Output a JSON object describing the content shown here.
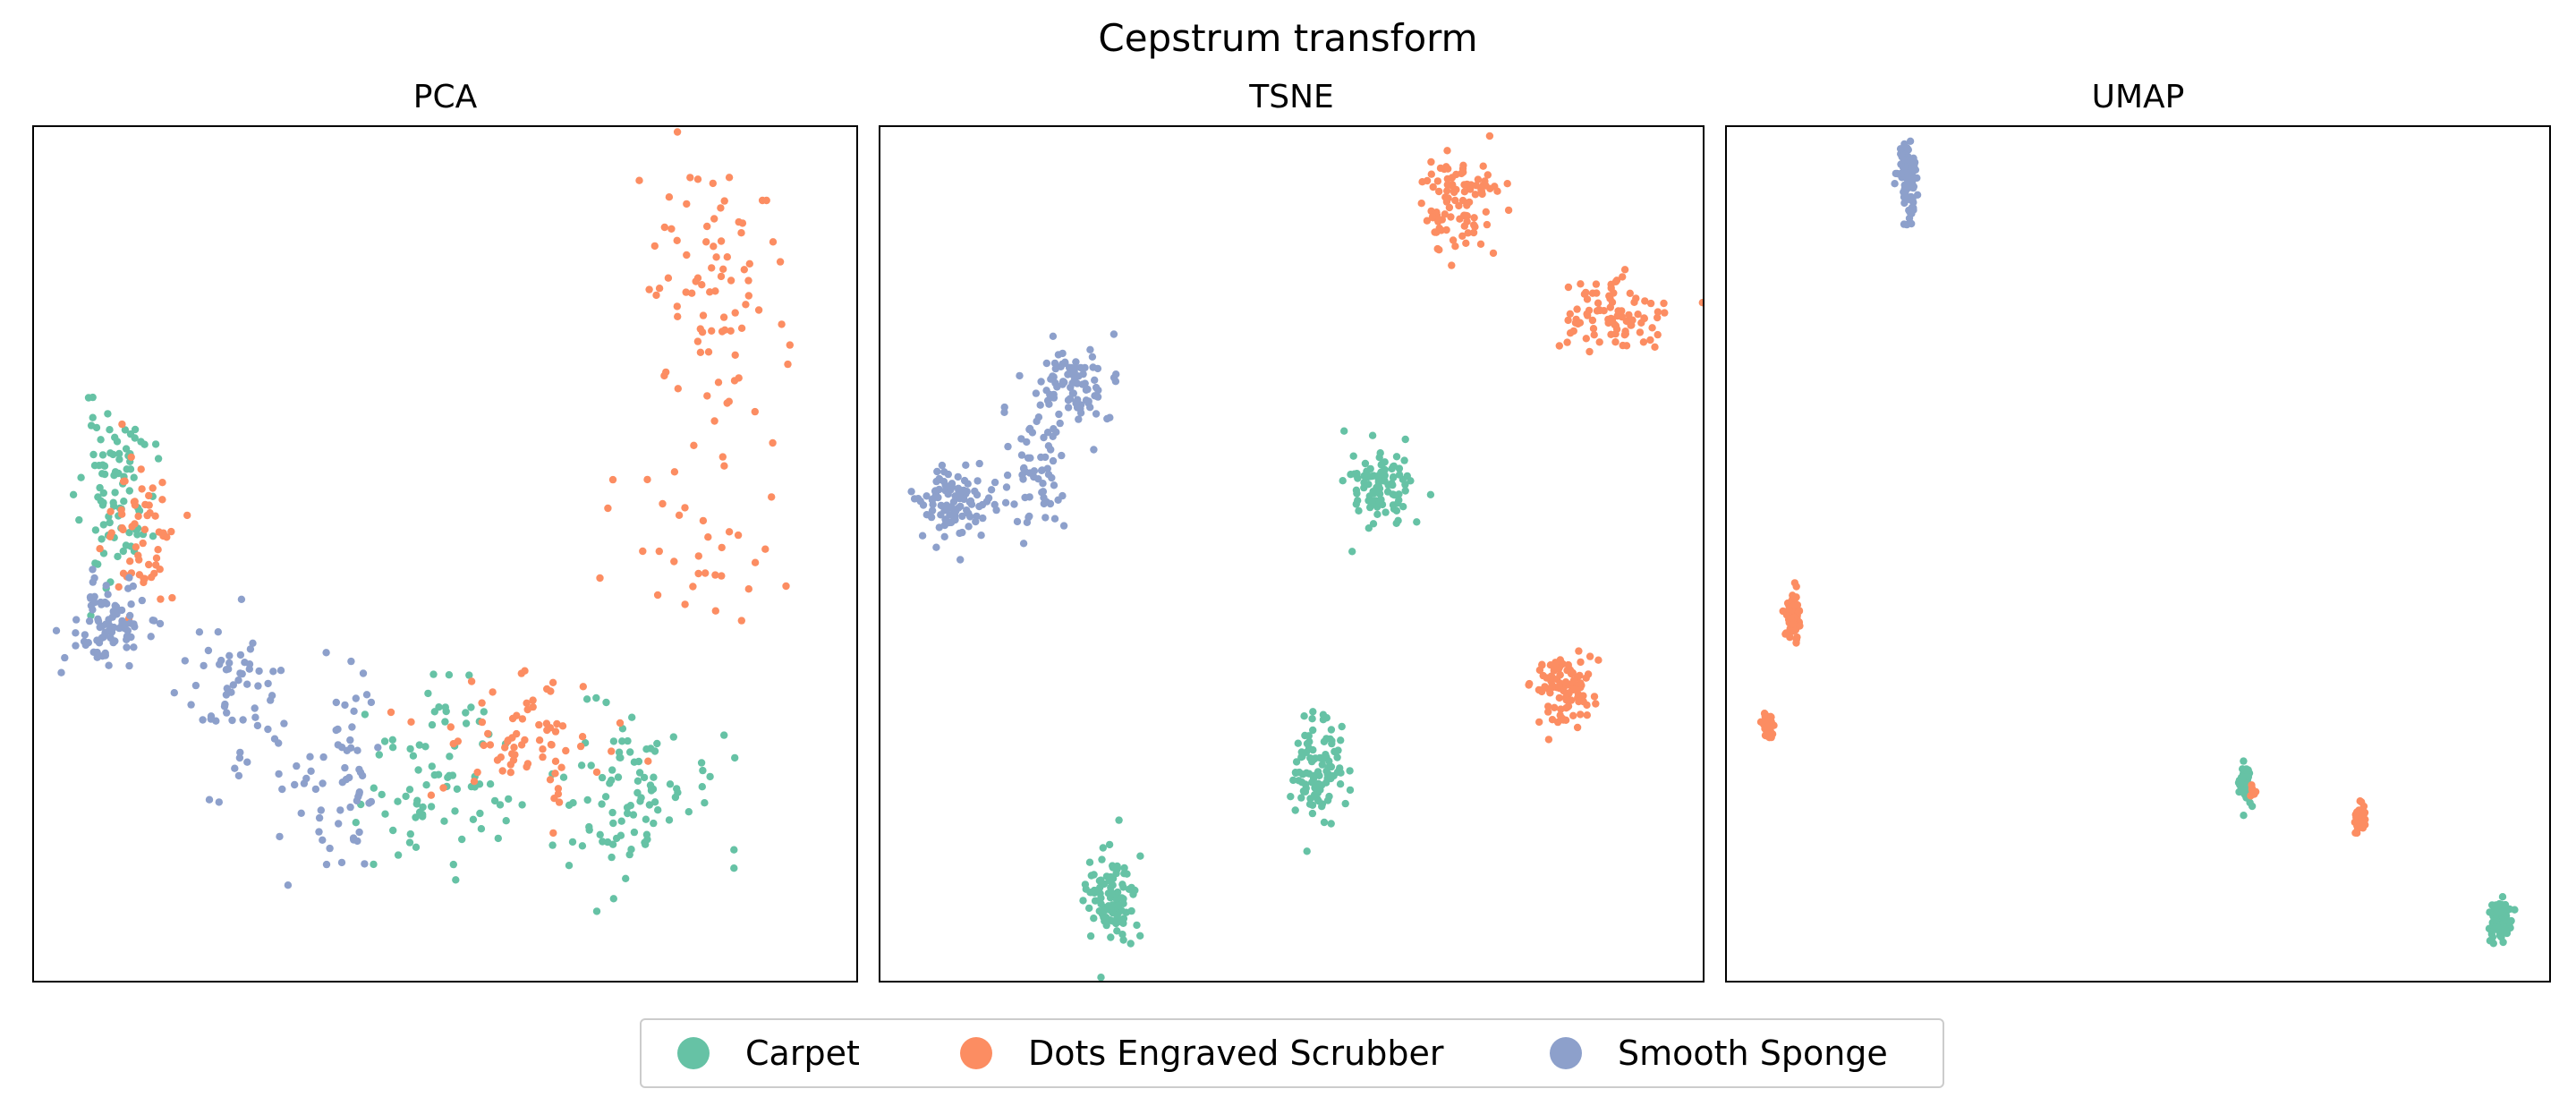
{
  "figure": {
    "title": "Cepstrum transform"
  },
  "colors": {
    "Carpet": "#66c2a5",
    "Dots Engraved Scrubber": "#fc8d62",
    "Smooth Sponge": "#8da0cb"
  },
  "legend": {
    "items": [
      "Carpet",
      "Dots Engraved Scrubber",
      "Smooth Sponge"
    ]
  },
  "chart_data": [
    {
      "type": "scatter",
      "title": "PCA",
      "xlabel": "",
      "ylabel": "",
      "ticks": false,
      "xlim": [
        0,
        100
      ],
      "ylim": [
        0,
        100
      ],
      "clusters": [
        {
          "series": "Carpet",
          "cx": 10,
          "cy": 57,
          "sx": 2.2,
          "sy": 5,
          "n": 90,
          "seed": 11
        },
        {
          "series": "Carpet",
          "cx": 49,
          "cy": 24,
          "sx": 4.5,
          "sy": 5,
          "n": 80,
          "seed": 12
        },
        {
          "series": "Carpet",
          "cx": 71,
          "cy": 22,
          "sx": 5.5,
          "sy": 5,
          "n": 95,
          "seed": 13
        },
        {
          "series": "Dots Engraved Scrubber",
          "cx": 13,
          "cy": 52,
          "sx": 2.2,
          "sy": 5,
          "n": 60,
          "seed": 21
        },
        {
          "series": "Dots Engraved Scrubber",
          "cx": 59,
          "cy": 29,
          "sx": 5,
          "sy": 3.5,
          "n": 75,
          "seed": 22
        },
        {
          "series": "Dots Engraved Scrubber",
          "cx": 82,
          "cy": 80,
          "sx": 4.5,
          "sy": 9.5,
          "n": 85,
          "seed": 23
        },
        {
          "series": "Dots Engraved Scrubber",
          "cx": 81,
          "cy": 50,
          "sx": 6,
          "sy": 5,
          "n": 30,
          "seed": 24
        },
        {
          "series": "Smooth Sponge",
          "cx": 9,
          "cy": 42,
          "sx": 2.2,
          "sy": 2.5,
          "n": 90,
          "seed": 31
        },
        {
          "series": "Smooth Sponge",
          "cx": 25,
          "cy": 34,
          "sx": 3.5,
          "sy": 4.5,
          "n": 60,
          "seed": 32
        },
        {
          "series": "Smooth Sponge",
          "cx": 37,
          "cy": 24,
          "sx": 3.5,
          "sy": 5.5,
          "n": 60,
          "seed": 33
        }
      ]
    },
    {
      "type": "scatter",
      "title": "TSNE",
      "xlabel": "",
      "ylabel": "",
      "ticks": false,
      "xlim": [
        0,
        100
      ],
      "ylim": [
        0,
        100
      ],
      "clusters": [
        {
          "series": "Carpet",
          "cx": 61,
          "cy": 58,
          "sx": 1.8,
          "sy": 2.3,
          "n": 100,
          "seed": 41
        },
        {
          "series": "Carpet",
          "cx": 53,
          "cy": 25,
          "sx": 1.7,
          "sy": 3.0,
          "n": 100,
          "seed": 42
        },
        {
          "series": "Carpet",
          "cx": 28,
          "cy": 9,
          "sx": 1.6,
          "sy": 3.0,
          "n": 100,
          "seed": 43
        },
        {
          "series": "Dots Engraved Scrubber",
          "cx": 70,
          "cy": 91,
          "sx": 2.2,
          "sy": 3.0,
          "n": 100,
          "seed": 51
        },
        {
          "series": "Dots Engraved Scrubber",
          "cx": 90,
          "cy": 78,
          "sx": 3.0,
          "sy": 2.2,
          "n": 90,
          "seed": 52
        },
        {
          "series": "Dots Engraved Scrubber",
          "cx": 83,
          "cy": 34,
          "sx": 1.9,
          "sy": 2.0,
          "n": 100,
          "seed": 53
        },
        {
          "series": "Smooth Sponge",
          "cx": 23,
          "cy": 70,
          "sx": 3.0,
          "sy": 2.5,
          "n": 90,
          "seed": 61
        },
        {
          "series": "Smooth Sponge",
          "cx": 9,
          "cy": 56,
          "sx": 2.5,
          "sy": 2.2,
          "n": 100,
          "seed": 62
        },
        {
          "series": "Smooth Sponge",
          "cx": 19,
          "cy": 59,
          "sx": 1.6,
          "sy": 3.5,
          "n": 60,
          "seed": 63
        }
      ]
    },
    {
      "type": "scatter",
      "title": "UMAP",
      "xlabel": "",
      "ylabel": "",
      "ticks": false,
      "xlim": [
        0,
        100
      ],
      "ylim": [
        0,
        100
      ],
      "clusters": [
        {
          "series": "Carpet",
          "cx": 63,
          "cy": 23,
          "sx": 0.4,
          "sy": 1.2,
          "n": 60,
          "seed": 71
        },
        {
          "series": "Carpet",
          "cx": 94,
          "cy": 7,
          "sx": 0.7,
          "sy": 1.3,
          "n": 100,
          "seed": 72
        },
        {
          "series": "Dots Engraved Scrubber",
          "cx": 8,
          "cy": 43,
          "sx": 0.4,
          "sy": 1.5,
          "n": 60,
          "seed": 81
        },
        {
          "series": "Dots Engraved Scrubber",
          "cx": 5,
          "cy": 30,
          "sx": 0.4,
          "sy": 0.8,
          "n": 50,
          "seed": 82
        },
        {
          "series": "Dots Engraved Scrubber",
          "cx": 77,
          "cy": 19,
          "sx": 0.3,
          "sy": 0.9,
          "n": 40,
          "seed": 83
        },
        {
          "series": "Dots Engraved Scrubber",
          "cx": 64,
          "cy": 22,
          "sx": 0.2,
          "sy": 0.5,
          "n": 8,
          "seed": 84
        },
        {
          "series": "Smooth Sponge",
          "cx": 22,
          "cy": 94,
          "sx": 0.6,
          "sy": 2.2,
          "n": 100,
          "seed": 91
        }
      ]
    }
  ]
}
